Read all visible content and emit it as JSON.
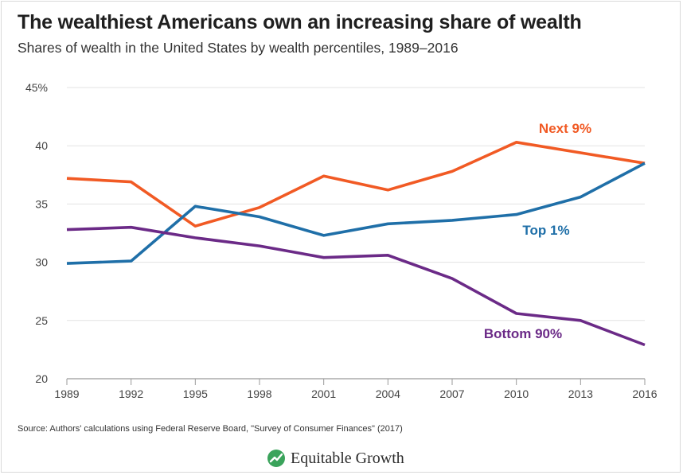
{
  "header": {
    "title": "The wealthiest Americans own an increasing share of wealth",
    "subtitle": "Shares of wealth in the United States by wealth percentiles, 1989–2016"
  },
  "footer": {
    "source": "Source: Authors' calculations using Federal Reserve Board, \"Survey of Consumer Finances\" (2017)",
    "logo_text": "Equitable Growth",
    "logo_icon": "growth-leaf-icon",
    "logo_color": "#3aa35b"
  },
  "chart_data": {
    "type": "line",
    "title": "The wealthiest Americans own an increasing share of wealth",
    "subtitle": "Shares of wealth in the United States by wealth percentiles, 1989–2016",
    "xlabel": "",
    "ylabel": "",
    "x": [
      1989,
      1992,
      1995,
      1998,
      2001,
      2004,
      2007,
      2010,
      2013,
      2016
    ],
    "xtick_labels": [
      "1989",
      "1992",
      "1995",
      "1998",
      "2001",
      "2004",
      "2007",
      "2010",
      "2013",
      "2016"
    ],
    "ylim": [
      20,
      45
    ],
    "yticks": [
      20,
      25,
      30,
      35,
      40,
      45
    ],
    "ytick_labels": [
      "20",
      "25",
      "30",
      "35",
      "40",
      "45%"
    ],
    "grid": "horizontal",
    "legend": "inline labels",
    "series": [
      {
        "name": "Next 9%",
        "color": "#f15a24",
        "values": [
          37.2,
          36.9,
          33.1,
          34.7,
          37.4,
          36.2,
          37.8,
          40.3,
          39.4,
          38.5
        ]
      },
      {
        "name": "Top 1%",
        "color": "#1f6fa8",
        "values": [
          29.9,
          30.1,
          34.8,
          33.9,
          32.3,
          33.3,
          33.6,
          34.1,
          35.6,
          38.5
        ]
      },
      {
        "name": "Bottom 90%",
        "color": "#6b2a87",
        "values": [
          32.8,
          33.0,
          32.1,
          31.4,
          30.4,
          30.6,
          28.6,
          25.6,
          25.0,
          22.9
        ]
      }
    ]
  }
}
